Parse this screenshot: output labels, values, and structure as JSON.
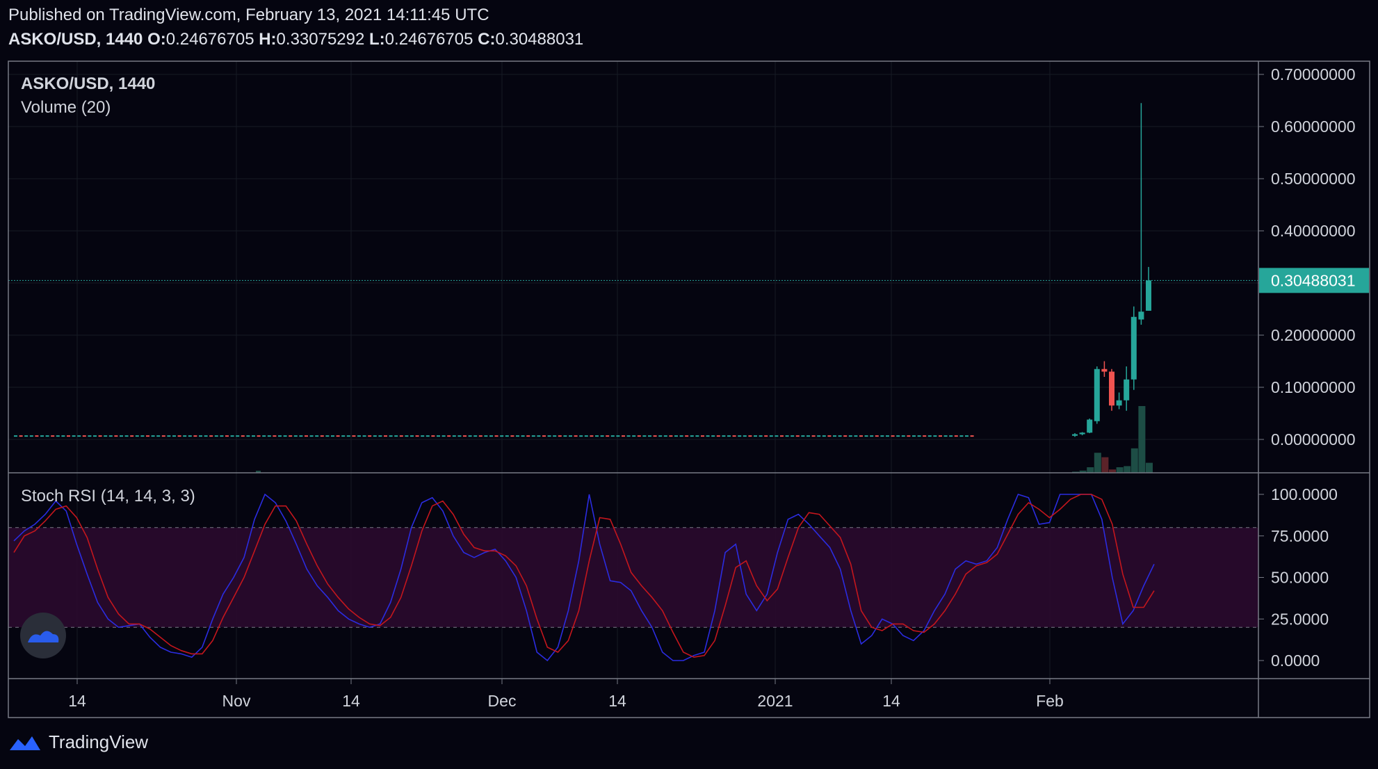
{
  "header": {
    "published": "Published on TradingView.com, February 13, 2021 14:11:45 UTC",
    "symbol_interval": "ASKO/USD, 1440",
    "o_label": "O:",
    "o_value": "0.24676705",
    "h_label": "H:",
    "h_value": "0.33075292",
    "l_label": "L:",
    "l_value": "0.24676705",
    "c_label": "C:",
    "c_value": "0.30488031"
  },
  "footer": {
    "brand": "TradingView"
  },
  "colors": {
    "background": "#050510",
    "grid": "#161a25",
    "text": "#d1d4dc",
    "up": "#26a69a",
    "down": "#ef5350",
    "vol_up": "#1d4d45",
    "vol_down": "#5b2329",
    "stoch_k": "#2b2ce0",
    "stoch_d": "#c4161d",
    "stoch_band": "#2a0a2e",
    "price_label_bg": "#26a69a",
    "border": "#787b86"
  },
  "chart_data": [
    {
      "type": "candlestick",
      "title": "ASKO/USD, 1440",
      "indicator_label": "Volume (20)",
      "ylim": [
        -0.06,
        0.72
      ],
      "y_ticks": [
        "0.00000000",
        "0.10000000",
        "0.20000000",
        "0.30000000",
        "0.40000000",
        "0.50000000",
        "0.60000000",
        "0.70000000"
      ],
      "y_tick_values": [
        0,
        0.1,
        0.2,
        0.3,
        0.4,
        0.5,
        0.6,
        0.7
      ],
      "x_ticks": [
        "14",
        "Nov",
        "14",
        "Dec",
        "14",
        "2021",
        "14",
        "Feb"
      ],
      "last_price": "0.30488031",
      "last_price_value": 0.30488031,
      "recent_candles": [
        {
          "date": "2021-02-01",
          "o": 0.007,
          "h": 0.012,
          "l": 0.005,
          "c": 0.01
        },
        {
          "date": "2021-02-02",
          "o": 0.01,
          "h": 0.014,
          "l": 0.008,
          "c": 0.013
        },
        {
          "date": "2021-02-03",
          "o": 0.013,
          "h": 0.04,
          "l": 0.012,
          "c": 0.038
        },
        {
          "date": "2021-02-04",
          "o": 0.035,
          "h": 0.14,
          "l": 0.03,
          "c": 0.135
        },
        {
          "date": "2021-02-05",
          "o": 0.135,
          "h": 0.15,
          "l": 0.12,
          "c": 0.13
        },
        {
          "date": "2021-02-06",
          "o": 0.13,
          "h": 0.135,
          "l": 0.055,
          "c": 0.065
        },
        {
          "date": "2021-02-07",
          "o": 0.065,
          "h": 0.09,
          "l": 0.058,
          "c": 0.075
        },
        {
          "date": "2021-02-08",
          "o": 0.075,
          "h": 0.14,
          "l": 0.055,
          "c": 0.115
        },
        {
          "date": "2021-02-09",
          "o": 0.115,
          "h": 0.255,
          "l": 0.095,
          "c": 0.235
        },
        {
          "date": "2021-02-10",
          "o": 0.23,
          "h": 0.645,
          "l": 0.22,
          "c": 0.245
        },
        {
          "date": "2021-02-11",
          "o": 0.24676705,
          "h": 0.33075292,
          "l": 0.24676705,
          "c": 0.30488031
        }
      ],
      "recent_volume": [
        0.01,
        0.02,
        0.05,
        0.18,
        0.14,
        0.03,
        0.05,
        0.06,
        0.22,
        0.6,
        0.09
      ]
    },
    {
      "type": "line",
      "title": "Stoch RSI (14, 14, 3, 3)",
      "ylim": [
        -6,
        105
      ],
      "y_ticks": [
        "0.0000",
        "25.0000",
        "50.0000",
        "75.0000",
        "100.0000"
      ],
      "y_tick_values": [
        0,
        25,
        50,
        75,
        100
      ],
      "bands": [
        20,
        80
      ],
      "series": [
        {
          "values": [
            72,
            78,
            82,
            88,
            96,
            90,
            70,
            52,
            35,
            25,
            20,
            21,
            22,
            14,
            8,
            5,
            4,
            2,
            8,
            25,
            40,
            50,
            62,
            85,
            100,
            95,
            84,
            70,
            55,
            45,
            38,
            30,
            25,
            22,
            20,
            22,
            35,
            55,
            80,
            95,
            98,
            90,
            75,
            65,
            62,
            65,
            67,
            60,
            50,
            30,
            5,
            0,
            8,
            30,
            60,
            100,
            70,
            48,
            47,
            42,
            30,
            20,
            5,
            0,
            0,
            3,
            5,
            30,
            65,
            70,
            40,
            30,
            40,
            65,
            85,
            88,
            82,
            75,
            68,
            55,
            30,
            10,
            15,
            25,
            22,
            15,
            12,
            18,
            30,
            40,
            55,
            60,
            58,
            60,
            68,
            85,
            100,
            98,
            82,
            83,
            100,
            100,
            100,
            100,
            85,
            50,
            22,
            30,
            45,
            58
          ]
        },
        {
          "values": [
            65,
            75,
            78,
            84,
            91,
            93,
            86,
            74,
            55,
            38,
            28,
            22,
            22,
            19,
            14,
            9,
            6,
            4,
            4,
            12,
            26,
            38,
            50,
            66,
            82,
            93,
            93,
            84,
            70,
            57,
            46,
            38,
            31,
            26,
            22,
            21,
            26,
            38,
            57,
            78,
            93,
            96,
            88,
            76,
            68,
            66,
            66,
            63,
            57,
            45,
            25,
            8,
            5,
            12,
            30,
            60,
            86,
            85,
            70,
            53,
            45,
            38,
            30,
            17,
            5,
            2,
            3,
            12,
            33,
            56,
            60,
            45,
            36,
            43,
            62,
            80,
            89,
            88,
            81,
            74,
            58,
            30,
            20,
            18,
            22,
            22,
            18,
            17,
            22,
            30,
            40,
            52,
            57,
            59,
            64,
            76,
            88,
            95,
            91,
            86,
            91,
            97,
            100,
            100,
            97,
            82,
            52,
            32,
            32,
            42
          ]
        }
      ]
    }
  ]
}
